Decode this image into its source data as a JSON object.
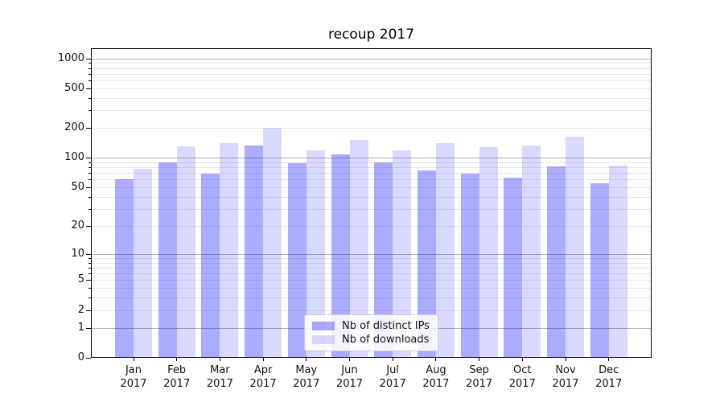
{
  "title": "recoup 2017",
  "chart_data": {
    "type": "bar",
    "title": "recoup 2017",
    "x_categories": [
      "Jan 2017",
      "Feb 2017",
      "Mar 2017",
      "Apr 2017",
      "May 2017",
      "Jun 2017",
      "Jul 2017",
      "Aug 2017",
      "Sep 2017",
      "Oct 2017",
      "Nov 2017",
      "Dec 2017"
    ],
    "series": [
      {
        "name": "Nb of distinct IPs",
        "color": "#0000ff54",
        "values": [
          60,
          89,
          69,
          133,
          88,
          109,
          90,
          74,
          69,
          63,
          82,
          55
        ]
      },
      {
        "name": "Nb of downloads",
        "color": "#0000ff26",
        "values": [
          77,
          131,
          140,
          200,
          120,
          152,
          120,
          140,
          127,
          133,
          163,
          84
        ]
      }
    ],
    "yscale": "log1p",
    "ylim": [
      0,
      1264
    ],
    "yticks_labeled": [
      0,
      1,
      2,
      5,
      10,
      20,
      50,
      100,
      200,
      500,
      1000
    ],
    "yticks_minor": [
      3,
      4,
      6,
      7,
      8,
      9,
      30,
      40,
      60,
      70,
      80,
      90,
      300,
      400,
      600,
      700,
      800,
      900
    ],
    "ydecades": [
      1,
      10,
      100,
      1000
    ],
    "grid": true,
    "legend_position": "lower center",
    "grid_major_color": "#b3b3b3",
    "grid_minor_color": "#e7e7e7"
  }
}
